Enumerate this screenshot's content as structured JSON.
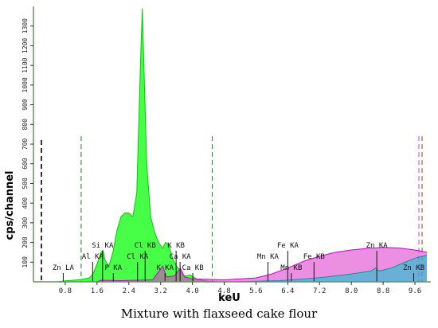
{
  "chart_data": {
    "type": "line",
    "title": "",
    "xlabel": "keU",
    "ylabel": "cps/channel",
    "xlim": [
      0.0,
      10.0
    ],
    "ylim": [
      0,
      1400
    ],
    "x_ticks": [
      "0.8",
      "1.6",
      "2.4",
      "3.2",
      "4.0",
      "4.8",
      "5.6",
      "6.4",
      "7.2",
      "8.0",
      "8.8",
      "9.6"
    ],
    "y_ticks": [
      "100",
      "200",
      "300",
      "400",
      "500",
      "600",
      "700",
      "800",
      "900",
      "1000",
      "1100",
      "1200",
      "1300"
    ],
    "grid": false,
    "series": [
      {
        "color": "#00cc00",
        "fill": "#33ff33",
        "points": [
          [
            0.1,
            0
          ],
          [
            0.6,
            0
          ],
          [
            0.8,
            5
          ],
          [
            1.0,
            8
          ],
          [
            1.2,
            12
          ],
          [
            1.4,
            20
          ],
          [
            1.5,
            40
          ],
          [
            1.6,
            90
          ],
          [
            1.7,
            150
          ],
          [
            1.75,
            160
          ],
          [
            1.8,
            110
          ],
          [
            1.9,
            80
          ],
          [
            2.0,
            150
          ],
          [
            2.1,
            260
          ],
          [
            2.2,
            330
          ],
          [
            2.3,
            350
          ],
          [
            2.4,
            350
          ],
          [
            2.5,
            330
          ],
          [
            2.6,
            450
          ],
          [
            2.7,
            1150
          ],
          [
            2.74,
            1390
          ],
          [
            2.78,
            1100
          ],
          [
            2.85,
            600
          ],
          [
            2.95,
            330
          ],
          [
            3.05,
            250
          ],
          [
            3.15,
            200
          ],
          [
            3.25,
            170
          ],
          [
            3.32,
            200
          ],
          [
            3.4,
            190
          ],
          [
            3.5,
            120
          ],
          [
            3.6,
            80
          ],
          [
            3.7,
            55
          ],
          [
            3.8,
            30
          ],
          [
            3.95,
            35
          ],
          [
            4.1,
            15
          ],
          [
            4.3,
            5
          ],
          [
            4.6,
            0
          ],
          [
            9.9,
            0
          ]
        ]
      },
      {
        "color": "#cc00cc",
        "fill": "#dd33cc",
        "points": [
          [
            0.1,
            0
          ],
          [
            1.6,
            0
          ],
          [
            1.7,
            8
          ],
          [
            2.2,
            6
          ],
          [
            3.0,
            10
          ],
          [
            3.25,
            80
          ],
          [
            3.35,
            25
          ],
          [
            3.55,
            30
          ],
          [
            3.7,
            70
          ],
          [
            3.8,
            25
          ],
          [
            4.0,
            15
          ],
          [
            4.8,
            10
          ],
          [
            5.2,
            15
          ],
          [
            5.6,
            20
          ],
          [
            6.0,
            40
          ],
          [
            6.4,
            70
          ],
          [
            6.8,
            105
          ],
          [
            7.2,
            130
          ],
          [
            7.6,
            150
          ],
          [
            8.0,
            162
          ],
          [
            8.4,
            170
          ],
          [
            8.8,
            175
          ],
          [
            9.2,
            172
          ],
          [
            9.6,
            162
          ],
          [
            9.9,
            150
          ]
        ]
      },
      {
        "color": "#009999",
        "fill": "#00cccc",
        "points": [
          [
            0.1,
            0
          ],
          [
            5.0,
            0
          ],
          [
            5.6,
            3
          ],
          [
            6.2,
            6
          ],
          [
            6.8,
            14
          ],
          [
            7.4,
            25
          ],
          [
            8.0,
            40
          ],
          [
            8.5,
            55
          ],
          [
            8.6,
            70
          ],
          [
            8.7,
            55
          ],
          [
            9.0,
            70
          ],
          [
            9.3,
            95
          ],
          [
            9.6,
            120
          ],
          [
            9.9,
            135
          ]
        ]
      }
    ],
    "annotations": [
      {
        "text": "Zn LA",
        "x": 0.75
      },
      {
        "text": "Al KA",
        "x": 1.49
      },
      {
        "text": "Si KA",
        "x": 1.74
      },
      {
        "text": "P KA",
        "x": 2.01
      },
      {
        "text": "Cl KA",
        "x": 2.62
      },
      {
        "text": "Cl KB",
        "x": 2.81
      },
      {
        "text": "K KA",
        "x": 3.31
      },
      {
        "text": "Ca KA",
        "x": 3.69
      },
      {
        "text": "K KB",
        "x": 3.59
      },
      {
        "text": "Ca KB",
        "x": 4.01
      },
      {
        "text": "Mn KA",
        "x": 5.9
      },
      {
        "text": "Fe KA",
        "x": 6.4
      },
      {
        "text": "Mn KB",
        "x": 6.49
      },
      {
        "text": "Fe KB",
        "x": 7.06
      },
      {
        "text": "Zn KA",
        "x": 8.64
      },
      {
        "text": "Zn KB",
        "x": 9.57
      }
    ],
    "markers": [
      0.2,
      1.2,
      4.5,
      9.7,
      9.78
    ]
  },
  "caption": "Mixture with flaxseed cake flour"
}
